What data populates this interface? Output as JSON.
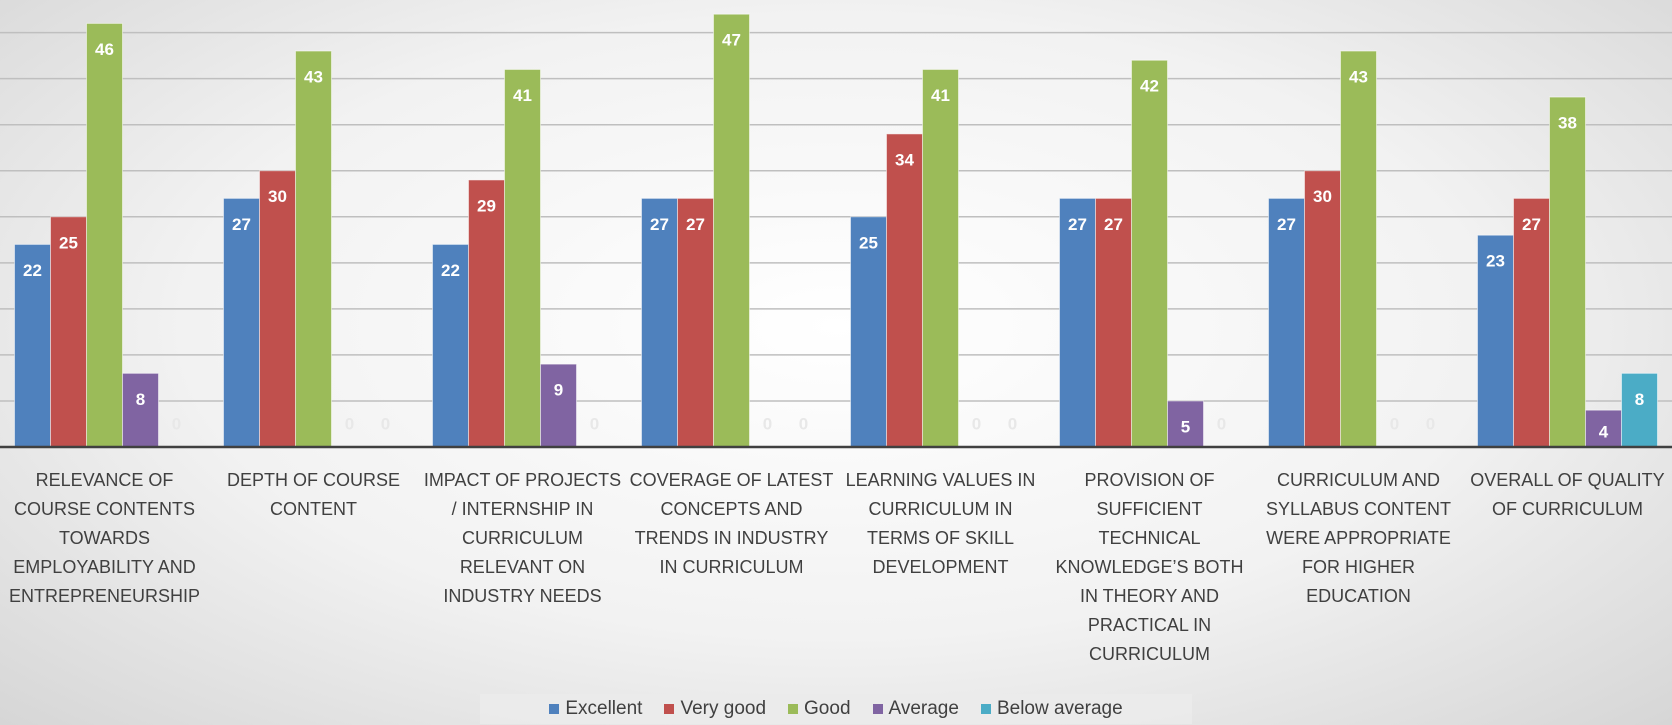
{
  "chart_data": {
    "type": "bar",
    "categories": [
      "RELEVANCE OF COURSE CONTENTS TOWARDS EMPLOYABILITY AND ENTREPRENEURSHIP",
      "DEPTH OF COURSE CONTENT",
      "IMPACT OF PROJECTS / INTERNSHIP IN CURRICULUM RELEVANT ON INDUSTRY NEEDS",
      "COVERAGE OF LATEST CONCEPTS AND TRENDS IN INDUSTRY IN CURRICULUM",
      "LEARNING VALUES IN CURRICULUM IN TERMS OF SKILL DEVELOPMENT",
      "PROVISION OF SUFFICIENT TECHNICAL KNOWLEDGE’S BOTH IN THEORY AND PRACTICAL IN CURRICULUM",
      "CURRICULUM AND SYLLABUS CONTENT WERE APPROPRIATE FOR HIGHER EDUCATION",
      "OVERALL OF QUALITY OF CURRICULUM"
    ],
    "series": [
      {
        "name": "Excellent",
        "color": "#4f81bd",
        "values": [
          22,
          27,
          22,
          27,
          25,
          27,
          27,
          23
        ]
      },
      {
        "name": "Very good",
        "color": "#c0504d",
        "values": [
          25,
          30,
          29,
          27,
          34,
          27,
          30,
          27
        ]
      },
      {
        "name": "Good",
        "color": "#9bbb59",
        "values": [
          46,
          43,
          41,
          47,
          41,
          42,
          43,
          38
        ]
      },
      {
        "name": "Average",
        "color": "#8064a2",
        "values": [
          8,
          0,
          9,
          0,
          0,
          5,
          0,
          4
        ]
      },
      {
        "name": "Below average",
        "color": "#4bacc6",
        "values": [
          0,
          0,
          0,
          0,
          0,
          0,
          0,
          8
        ]
      }
    ],
    "ylim": [
      0,
      48
    ],
    "yticks": [
      0,
      5,
      10,
      15,
      20,
      25,
      30,
      35,
      40,
      45
    ],
    "grid": true,
    "legend": "bottom"
  }
}
